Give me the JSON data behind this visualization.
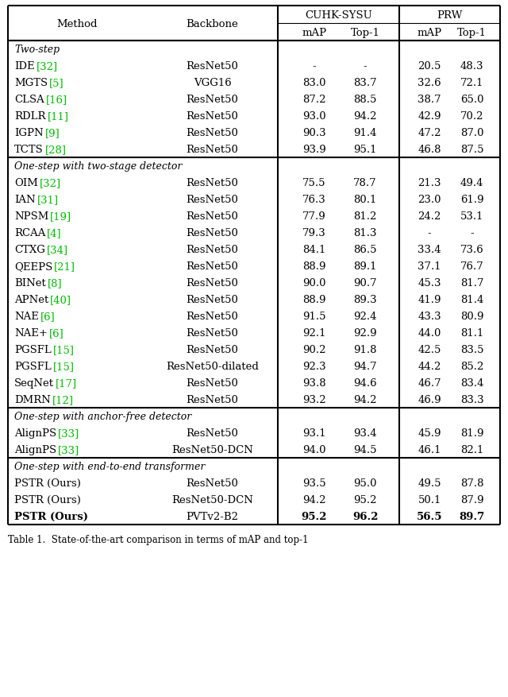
{
  "title_caption": "Table 1.  State-of-the-art comparison in terms of mAP and top-1",
  "sections": [
    {
      "section_label": "Two-step",
      "rows": [
        {
          "method": "IDE",
          "cite": "[32]",
          "backbone": "ResNet50",
          "cs_map": "-",
          "cs_top1": "-",
          "prw_map": "20.5",
          "prw_top1": "48.3"
        },
        {
          "method": "MGTS",
          "cite": "[5]",
          "backbone": "VGG16",
          "cs_map": "83.0",
          "cs_top1": "83.7",
          "prw_map": "32.6",
          "prw_top1": "72.1"
        },
        {
          "method": "CLSA",
          "cite": "[16]",
          "backbone": "ResNet50",
          "cs_map": "87.2",
          "cs_top1": "88.5",
          "prw_map": "38.7",
          "prw_top1": "65.0"
        },
        {
          "method": "RDLR",
          "cite": "[11]",
          "backbone": "ResNet50",
          "cs_map": "93.0",
          "cs_top1": "94.2",
          "prw_map": "42.9",
          "prw_top1": "70.2"
        },
        {
          "method": "IGPN",
          "cite": "[9]",
          "backbone": "ResNet50",
          "cs_map": "90.3",
          "cs_top1": "91.4",
          "prw_map": "47.2",
          "prw_top1": "87.0"
        },
        {
          "method": "TCTS",
          "cite": "[28]",
          "backbone": "ResNet50",
          "cs_map": "93.9",
          "cs_top1": "95.1",
          "prw_map": "46.8",
          "prw_top1": "87.5"
        }
      ]
    },
    {
      "section_label": "One-step with two-stage detector",
      "rows": [
        {
          "method": "OIM",
          "cite": "[32]",
          "backbone": "ResNet50",
          "cs_map": "75.5",
          "cs_top1": "78.7",
          "prw_map": "21.3",
          "prw_top1": "49.4"
        },
        {
          "method": "IAN",
          "cite": "[31]",
          "backbone": "ResNet50",
          "cs_map": "76.3",
          "cs_top1": "80.1",
          "prw_map": "23.0",
          "prw_top1": "61.9"
        },
        {
          "method": "NPSM",
          "cite": "[19]",
          "backbone": "ResNet50",
          "cs_map": "77.9",
          "cs_top1": "81.2",
          "prw_map": "24.2",
          "prw_top1": "53.1"
        },
        {
          "method": "RCAA",
          "cite": "[4]",
          "backbone": "ResNet50",
          "cs_map": "79.3",
          "cs_top1": "81.3",
          "prw_map": "-",
          "prw_top1": "-"
        },
        {
          "method": "CTXG",
          "cite": "[34]",
          "backbone": "ResNet50",
          "cs_map": "84.1",
          "cs_top1": "86.5",
          "prw_map": "33.4",
          "prw_top1": "73.6"
        },
        {
          "method": "QEEPS",
          "cite": "[21]",
          "backbone": "ResNet50",
          "cs_map": "88.9",
          "cs_top1": "89.1",
          "prw_map": "37.1",
          "prw_top1": "76.7"
        },
        {
          "method": "BINet",
          "cite": "[8]",
          "backbone": "ResNet50",
          "cs_map": "90.0",
          "cs_top1": "90.7",
          "prw_map": "45.3",
          "prw_top1": "81.7"
        },
        {
          "method": "APNet",
          "cite": "[40]",
          "backbone": "ResNet50",
          "cs_map": "88.9",
          "cs_top1": "89.3",
          "prw_map": "41.9",
          "prw_top1": "81.4"
        },
        {
          "method": "NAE",
          "cite": "[6]",
          "backbone": "ResNet50",
          "cs_map": "91.5",
          "cs_top1": "92.4",
          "prw_map": "43.3",
          "prw_top1": "80.9"
        },
        {
          "method": "NAE+",
          "cite": "[6]",
          "backbone": "ResNet50",
          "cs_map": "92.1",
          "cs_top1": "92.9",
          "prw_map": "44.0",
          "prw_top1": "81.1"
        },
        {
          "method": "PGSFL",
          "cite": "[15]",
          "backbone": "ResNet50",
          "cs_map": "90.2",
          "cs_top1": "91.8",
          "prw_map": "42.5",
          "prw_top1": "83.5"
        },
        {
          "method": "PGSFL",
          "cite": "[15]",
          "backbone": "ResNet50-dilated",
          "cs_map": "92.3",
          "cs_top1": "94.7",
          "prw_map": "44.2",
          "prw_top1": "85.2"
        },
        {
          "method": "SeqNet",
          "cite": "[17]",
          "backbone": "ResNet50",
          "cs_map": "93.8",
          "cs_top1": "94.6",
          "prw_map": "46.7",
          "prw_top1": "83.4"
        },
        {
          "method": "DMRN",
          "cite": "[12]",
          "backbone": "ResNet50",
          "cs_map": "93.2",
          "cs_top1": "94.2",
          "prw_map": "46.9",
          "prw_top1": "83.3"
        }
      ]
    },
    {
      "section_label": "One-step with anchor-free detector",
      "rows": [
        {
          "method": "AlignPS",
          "cite": "[33]",
          "backbone": "ResNet50",
          "cs_map": "93.1",
          "cs_top1": "93.4",
          "prw_map": "45.9",
          "prw_top1": "81.9"
        },
        {
          "method": "AlignPS",
          "cite": "[33]",
          "backbone": "ResNet50-DCN",
          "cs_map": "94.0",
          "cs_top1": "94.5",
          "prw_map": "46.1",
          "prw_top1": "82.1"
        }
      ]
    },
    {
      "section_label": "One-step with end-to-end transformer",
      "rows": [
        {
          "method": "PSTR (Ours)",
          "cite": "",
          "backbone": "ResNet50",
          "cs_map": "93.5",
          "cs_top1": "95.0",
          "prw_map": "49.5",
          "prw_top1": "87.8"
        },
        {
          "method": "PSTR (Ours)",
          "cite": "",
          "backbone": "ResNet50-DCN",
          "cs_map": "94.2",
          "cs_top1": "95.2",
          "prw_map": "50.1",
          "prw_top1": "87.9"
        },
        {
          "method": "PSTR (Ours)",
          "cite": "",
          "backbone": "PVTv2-B2",
          "cs_map": "95.2",
          "cs_top1": "96.2",
          "prw_map": "56.5",
          "prw_top1": "89.7",
          "bold": true
        }
      ]
    }
  ],
  "cite_color": "#00bb00",
  "bg_color": "#ffffff",
  "text_color": "#000000"
}
